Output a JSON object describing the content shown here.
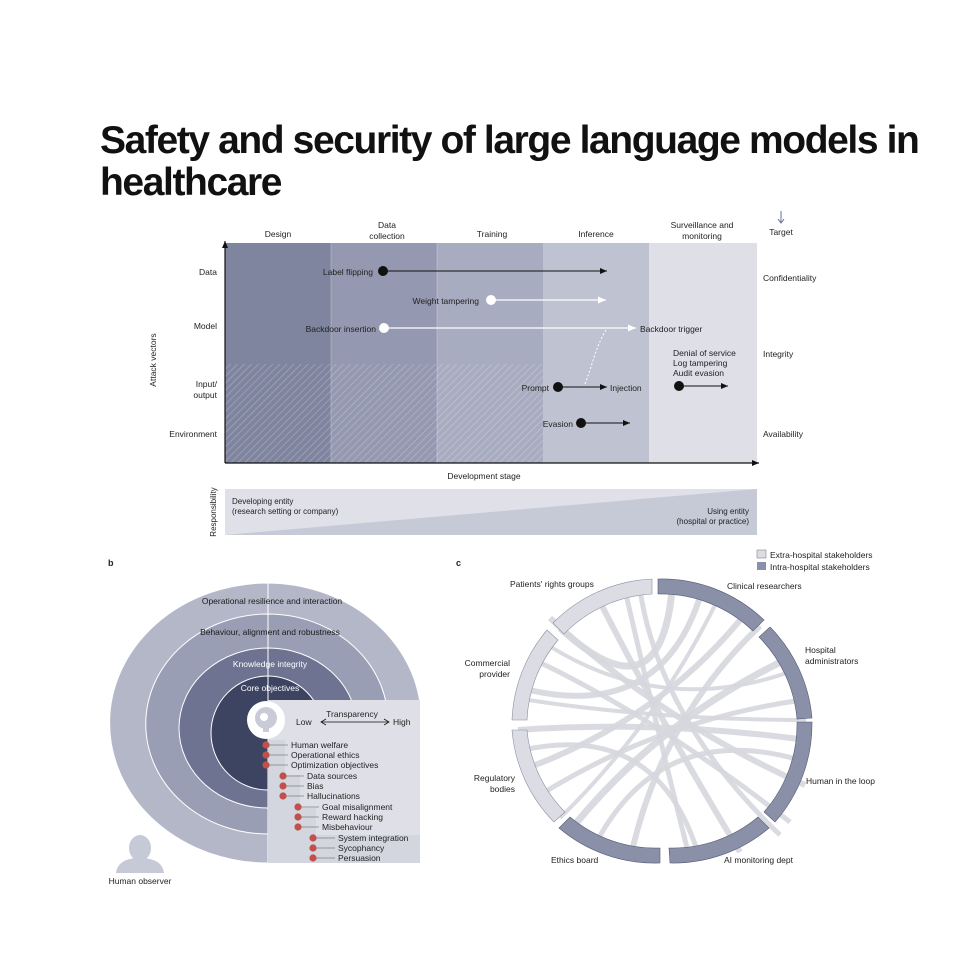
{
  "title": "Safety and security of large language models in healthcare",
  "panel_a": {
    "stages": [
      "Design",
      "Data collection",
      "Training",
      "Inference",
      "Surveillance and monitoring"
    ],
    "target_header": "Target",
    "vectors": [
      "Data",
      "Model",
      "Input/ output",
      "Environment"
    ],
    "y_axis_label": "Attack vectors",
    "x_axis_label": "Development stage",
    "targets": [
      "Confidentiality",
      "Integrity",
      "Availability"
    ],
    "attacks": {
      "label_flipping": "Label flipping",
      "weight_tampering": "Weight tampering",
      "backdoor_insertion": "Backdoor insertion",
      "backdoor_trigger": "Backdoor trigger",
      "prompt": "Prompt",
      "injection": "Injection",
      "evasion": "Evasion",
      "denial_of_service": "Denial of service",
      "log_tampering": "Log tampering",
      "audit_evasion": "Audit evasion"
    },
    "responsibility_label": "Responsibility",
    "developing_entity": "Developing entity",
    "developing_entity_sub": "(research setting or company)",
    "using_entity": "Using entity",
    "using_entity_sub": "(hospital or practice)"
  },
  "panel_b": {
    "label": "b",
    "rings": [
      "Operational resilience and interaction",
      "Behaviour, alignment and robustness",
      "Knowledge integrity",
      "Core objectives"
    ],
    "transparency": "Transparency",
    "low": "Low",
    "high": "High",
    "items": [
      "Human welfare",
      "Operational ethics",
      "Optimization objectives",
      "Data sources",
      "Bias",
      "Hallucinations",
      "Goal misalignment",
      "Reward hacking",
      "Misbehaviour",
      "System integration",
      "Sycophancy",
      "Persuasion"
    ],
    "human_observer": "Human observer"
  },
  "panel_c": {
    "label": "c",
    "legend": [
      "Extra-hospital stakeholders",
      "Intra-hospital stakeholders"
    ],
    "stakeholders": [
      "Clinical researchers",
      "Hospital administrators",
      "Human in the loop",
      "AI monitoring dept",
      "Ethics board",
      "Regulatory bodies",
      "Commercial provider",
      "Patients' rights groups"
    ],
    "colors": {
      "extra": "#dcdde4",
      "intra": "#8a90a8"
    }
  }
}
